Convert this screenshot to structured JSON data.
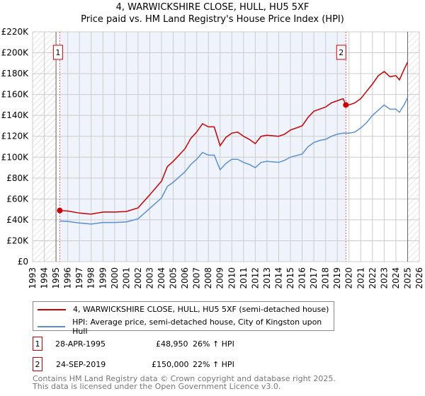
{
  "chart_data": {
    "type": "line",
    "title": "4, WARWICKSHIRE CLOSE, HULL, HU5 5XF",
    "subtitle": "Price paid vs. HM Land Registry's House Price Index (HPI)",
    "xlim": [
      1993,
      2026
    ],
    "ylim": [
      0,
      220000
    ],
    "x_ticks": [
      "1993",
      "1994",
      "1995",
      "1996",
      "1997",
      "1998",
      "1999",
      "2000",
      "2001",
      "2002",
      "2003",
      "2004",
      "2005",
      "2006",
      "2007",
      "2008",
      "2009",
      "2010",
      "2011",
      "2012",
      "2013",
      "2014",
      "2015",
      "2016",
      "2017",
      "2018",
      "2019",
      "2020",
      "2021",
      "2022",
      "2023",
      "2024",
      "2025",
      "2026"
    ],
    "y_ticks": [
      {
        "v": 0,
        "label": "£0"
      },
      {
        "v": 20000,
        "label": "£20K"
      },
      {
        "v": 40000,
        "label": "£40K"
      },
      {
        "v": 60000,
        "label": "£60K"
      },
      {
        "v": 80000,
        "label": "£80K"
      },
      {
        "v": 100000,
        "label": "£100K"
      },
      {
        "v": 120000,
        "label": "£120K"
      },
      {
        "v": 140000,
        "label": "£140K"
      },
      {
        "v": 160000,
        "label": "£160K"
      },
      {
        "v": 180000,
        "label": "£180K"
      },
      {
        "v": 200000,
        "label": "£200K"
      },
      {
        "v": 220000,
        "label": "£220K"
      }
    ],
    "grid": true,
    "series": [
      {
        "name": "4, WARWICKSHIRE CLOSE, HULL, HU5 5XF (semi-detached house)",
        "color": "#cc0000",
        "x": [
          1995.32,
          1996,
          1997,
          1998,
          1999,
          2000,
          2001,
          2002,
          2003,
          2004,
          2004.5,
          2005,
          2006,
          2006.5,
          2007,
          2007.5,
          2008,
          2008.5,
          2009,
          2009.5,
          2010,
          2010.5,
          2011,
          2011.5,
          2012,
          2012.5,
          2013,
          2014,
          2014.5,
          2015,
          2016,
          2016.5,
          2017,
          2017.5,
          2018,
          2018.5,
          2019,
          2019.5,
          2019.73,
          2020,
          2020.5,
          2021,
          2021.5,
          2022,
          2022.5,
          2023,
          2023.5,
          2024,
          2024.3,
          2024.7,
          2025
        ],
        "values": [
          48950,
          48500,
          46500,
          45500,
          47500,
          47500,
          48000,
          51500,
          64000,
          77000,
          91000,
          96000,
          108000,
          118000,
          124000,
          132000,
          129000,
          129000,
          111000,
          119000,
          123000,
          124000,
          120000,
          117000,
          113000,
          120000,
          121000,
          120000,
          122000,
          126000,
          130000,
          138000,
          144000,
          146000,
          148000,
          152000,
          154000,
          156000,
          150000,
          150000,
          152000,
          156000,
          163000,
          170000,
          178000,
          182000,
          177000,
          178000,
          174000,
          184000,
          191000
        ]
      },
      {
        "name": "HPI: Average price, semi-detached house, City of Kingston upon Hull",
        "color": "#5b8fd4",
        "x": [
          1995.32,
          1996,
          1997,
          1998,
          1999,
          2000,
          2001,
          2002,
          2003,
          2004,
          2004.5,
          2005,
          2006,
          2006.5,
          2007,
          2007.5,
          2008,
          2008.5,
          2009,
          2009.5,
          2010,
          2010.5,
          2011,
          2011.5,
          2012,
          2012.5,
          2013,
          2014,
          2014.5,
          2015,
          2016,
          2016.5,
          2017,
          2017.5,
          2018,
          2018.5,
          2019,
          2019.5,
          2019.73,
          2020,
          2020.5,
          2021,
          2021.5,
          2022,
          2022.5,
          2023,
          2023.5,
          2024,
          2024.3,
          2024.7,
          2025
        ],
        "values": [
          38900,
          38500,
          37000,
          36000,
          37500,
          37500,
          38000,
          41000,
          51000,
          61000,
          72000,
          76000,
          86000,
          93000,
          98000,
          104500,
          102000,
          102000,
          88000,
          94000,
          98000,
          98000,
          95000,
          93000,
          90000,
          95000,
          96000,
          95000,
          97000,
          100000,
          103000,
          110000,
          114000,
          116000,
          117000,
          120000,
          122000,
          123000,
          123000,
          123000,
          124000,
          128000,
          133000,
          140000,
          145000,
          150000,
          146000,
          146000,
          143000,
          150000,
          157000
        ]
      }
    ],
    "annotations": [
      {
        "label": "1",
        "x": 1995.32,
        "value": 48950
      },
      {
        "label": "2",
        "x": 2019.73,
        "value": 150000
      }
    ],
    "legend_placement": "bottom"
  },
  "sales": [
    {
      "num": "1",
      "date": "28-APR-1995",
      "price": "£48,950",
      "hpi": "26% ↑ HPI"
    },
    {
      "num": "2",
      "date": "24-SEP-2019",
      "price": "£150,000",
      "hpi": "22% ↑ HPI"
    }
  ],
  "footer": {
    "line1": "Contains HM Land Registry data © Crown copyright and database right 2025.",
    "line2": "This data is licensed under the Open Government Licence v3.0."
  }
}
